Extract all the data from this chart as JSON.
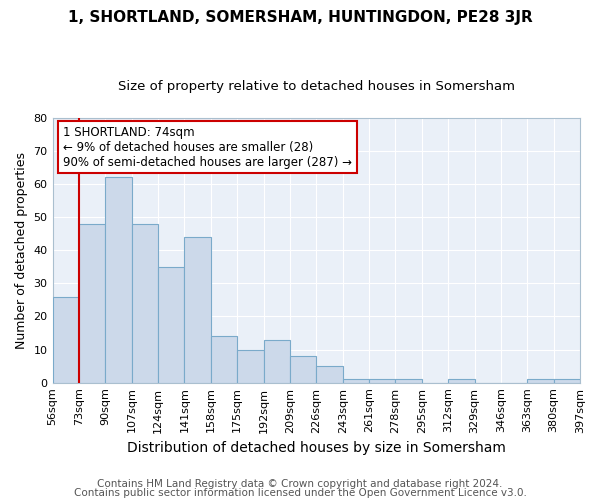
{
  "title": "1, SHORTLAND, SOMERSHAM, HUNTINGDON, PE28 3JR",
  "subtitle": "Size of property relative to detached houses in Somersham",
  "xlabel": "Distribution of detached houses by size in Somersham",
  "ylabel": "Number of detached properties",
  "footnote1": "Contains HM Land Registry data © Crown copyright and database right 2024.",
  "footnote2": "Contains public sector information licensed under the Open Government Licence v3.0.",
  "bin_labels": [
    "56sqm",
    "73sqm",
    "90sqm",
    "107sqm",
    "124sqm",
    "141sqm",
    "158sqm",
    "175sqm",
    "192sqm",
    "209sqm",
    "226sqm",
    "243sqm",
    "261sqm",
    "278sqm",
    "295sqm",
    "312sqm",
    "329sqm",
    "346sqm",
    "363sqm",
    "380sqm",
    "397sqm"
  ],
  "bar_values": [
    26,
    48,
    62,
    48,
    35,
    44,
    14,
    10,
    13,
    8,
    5,
    1,
    1,
    1,
    0,
    1,
    0,
    0,
    1,
    1
  ],
  "bar_color": "#ccd9ea",
  "bar_edge_color": "#7aaaca",
  "annotation_line1": "1 SHORTLAND: 74sqm",
  "annotation_line2": "← 9% of detached houses are smaller (28)",
  "annotation_line3": "90% of semi-detached houses are larger (287) →",
  "annotation_box_color": "white",
  "annotation_box_edge": "#cc0000",
  "vline_color": "#cc0000",
  "ylim": [
    0,
    80
  ],
  "yticks": [
    0,
    10,
    20,
    30,
    40,
    50,
    60,
    70,
    80
  ],
  "title_fontsize": 11,
  "subtitle_fontsize": 9.5,
  "xlabel_fontsize": 10,
  "ylabel_fontsize": 9,
  "tick_fontsize": 8,
  "footnote_fontsize": 7.5,
  "annotation_fontsize": 8.5,
  "bg_color": "#eaf0f8"
}
